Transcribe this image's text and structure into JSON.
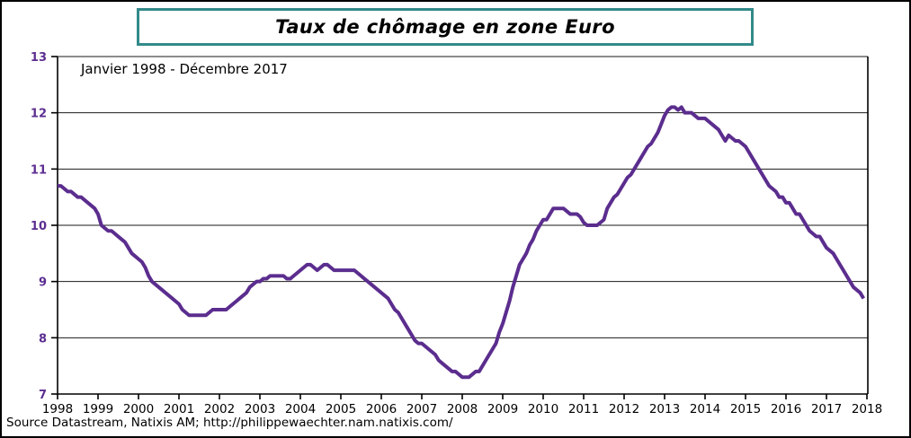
{
  "header": {
    "title": "Taux de chômage en zone Euro"
  },
  "chart": {
    "subtitle": "Janvier 1998 - Décembre 2017",
    "source": "Source Datastream, Natixis AM; http://philippewaechter.nam.natixis.com/"
  },
  "colors": {
    "line": "#5B2D8E",
    "axis_label": "#5C2D91",
    "x_label": "#000000",
    "title_border": "#338A8A",
    "grid": "#1A1A1A",
    "axis": "#000000",
    "background": "#FFFFFF"
  },
  "chart_data": {
    "type": "line",
    "title": "Taux de chômage en zone Euro",
    "subtitle": "Janvier 1998 - Décembre 2017",
    "source": "Source Datastream, Natixis AM; http://philippewaechter.nam.natixis.com/",
    "xlabel": "",
    "ylabel": "",
    "xlim": [
      1998,
      2018
    ],
    "ylim": [
      7,
      13
    ],
    "y_ticks": [
      7,
      8,
      9,
      10,
      11,
      12,
      13
    ],
    "x_tick_labels": [
      "1998",
      "1999",
      "2000",
      "2001",
      "2002",
      "2003",
      "2004",
      "2005",
      "2006",
      "2007",
      "2008",
      "2009",
      "2010",
      "2011",
      "2012",
      "2013",
      "2014",
      "2015",
      "2016",
      "2017",
      "2018"
    ],
    "grid": "horizontal",
    "legend": "none",
    "frequency": "monthly",
    "x_start": "1998-01",
    "x_end": "2017-12",
    "series": [
      {
        "name": "Taux de chômage en zone Euro",
        "color": "#5B2D8E",
        "values": [
          10.7,
          10.7,
          10.65,
          10.6,
          10.6,
          10.55,
          10.5,
          10.5,
          10.45,
          10.4,
          10.35,
          10.3,
          10.2,
          10.0,
          9.95,
          9.9,
          9.9,
          9.85,
          9.8,
          9.75,
          9.7,
          9.6,
          9.5,
          9.45,
          9.4,
          9.35,
          9.25,
          9.1,
          9.0,
          8.95,
          8.9,
          8.85,
          8.8,
          8.75,
          8.7,
          8.65,
          8.6,
          8.5,
          8.45,
          8.4,
          8.4,
          8.4,
          8.4,
          8.4,
          8.4,
          8.45,
          8.5,
          8.5,
          8.5,
          8.5,
          8.5,
          8.55,
          8.6,
          8.65,
          8.7,
          8.75,
          8.8,
          8.9,
          8.95,
          9.0,
          9.0,
          9.05,
          9.05,
          9.1,
          9.1,
          9.1,
          9.1,
          9.1,
          9.05,
          9.05,
          9.1,
          9.15,
          9.2,
          9.25,
          9.3,
          9.3,
          9.25,
          9.2,
          9.25,
          9.3,
          9.3,
          9.25,
          9.2,
          9.2,
          9.2,
          9.2,
          9.2,
          9.2,
          9.2,
          9.15,
          9.1,
          9.05,
          9.0,
          8.95,
          8.9,
          8.85,
          8.8,
          8.75,
          8.7,
          8.6,
          8.5,
          8.45,
          8.35,
          8.25,
          8.15,
          8.05,
          7.95,
          7.9,
          7.9,
          7.85,
          7.8,
          7.75,
          7.7,
          7.6,
          7.55,
          7.5,
          7.45,
          7.4,
          7.4,
          7.35,
          7.3,
          7.3,
          7.3,
          7.35,
          7.4,
          7.4,
          7.5,
          7.6,
          7.7,
          7.8,
          7.9,
          8.1,
          8.25,
          8.45,
          8.65,
          8.9,
          9.1,
          9.3,
          9.4,
          9.5,
          9.65,
          9.75,
          9.9,
          10.0,
          10.1,
          10.1,
          10.2,
          10.3,
          10.3,
          10.3,
          10.3,
          10.25,
          10.2,
          10.2,
          10.2,
          10.15,
          10.05,
          10.0,
          10.0,
          10.0,
          10.0,
          10.05,
          10.1,
          10.3,
          10.4,
          10.5,
          10.55,
          10.65,
          10.75,
          10.85,
          10.9,
          11.0,
          11.1,
          11.2,
          11.3,
          11.4,
          11.45,
          11.55,
          11.65,
          11.8,
          11.95,
          12.05,
          12.1,
          12.1,
          12.05,
          12.1,
          12.0,
          12.0,
          12.0,
          11.95,
          11.9,
          11.9,
          11.9,
          11.85,
          11.8,
          11.75,
          11.7,
          11.6,
          11.5,
          11.6,
          11.55,
          11.5,
          11.5,
          11.45,
          11.4,
          11.3,
          11.2,
          11.1,
          11.0,
          10.9,
          10.8,
          10.7,
          10.65,
          10.6,
          10.5,
          10.5,
          10.4,
          10.4,
          10.3,
          10.2,
          10.2,
          10.1,
          10.0,
          9.9,
          9.85,
          9.8,
          9.8,
          9.7,
          9.6,
          9.55,
          9.5,
          9.4,
          9.3,
          9.2,
          9.1,
          9.0,
          8.9,
          8.85,
          8.8,
          8.7
        ]
      }
    ]
  }
}
